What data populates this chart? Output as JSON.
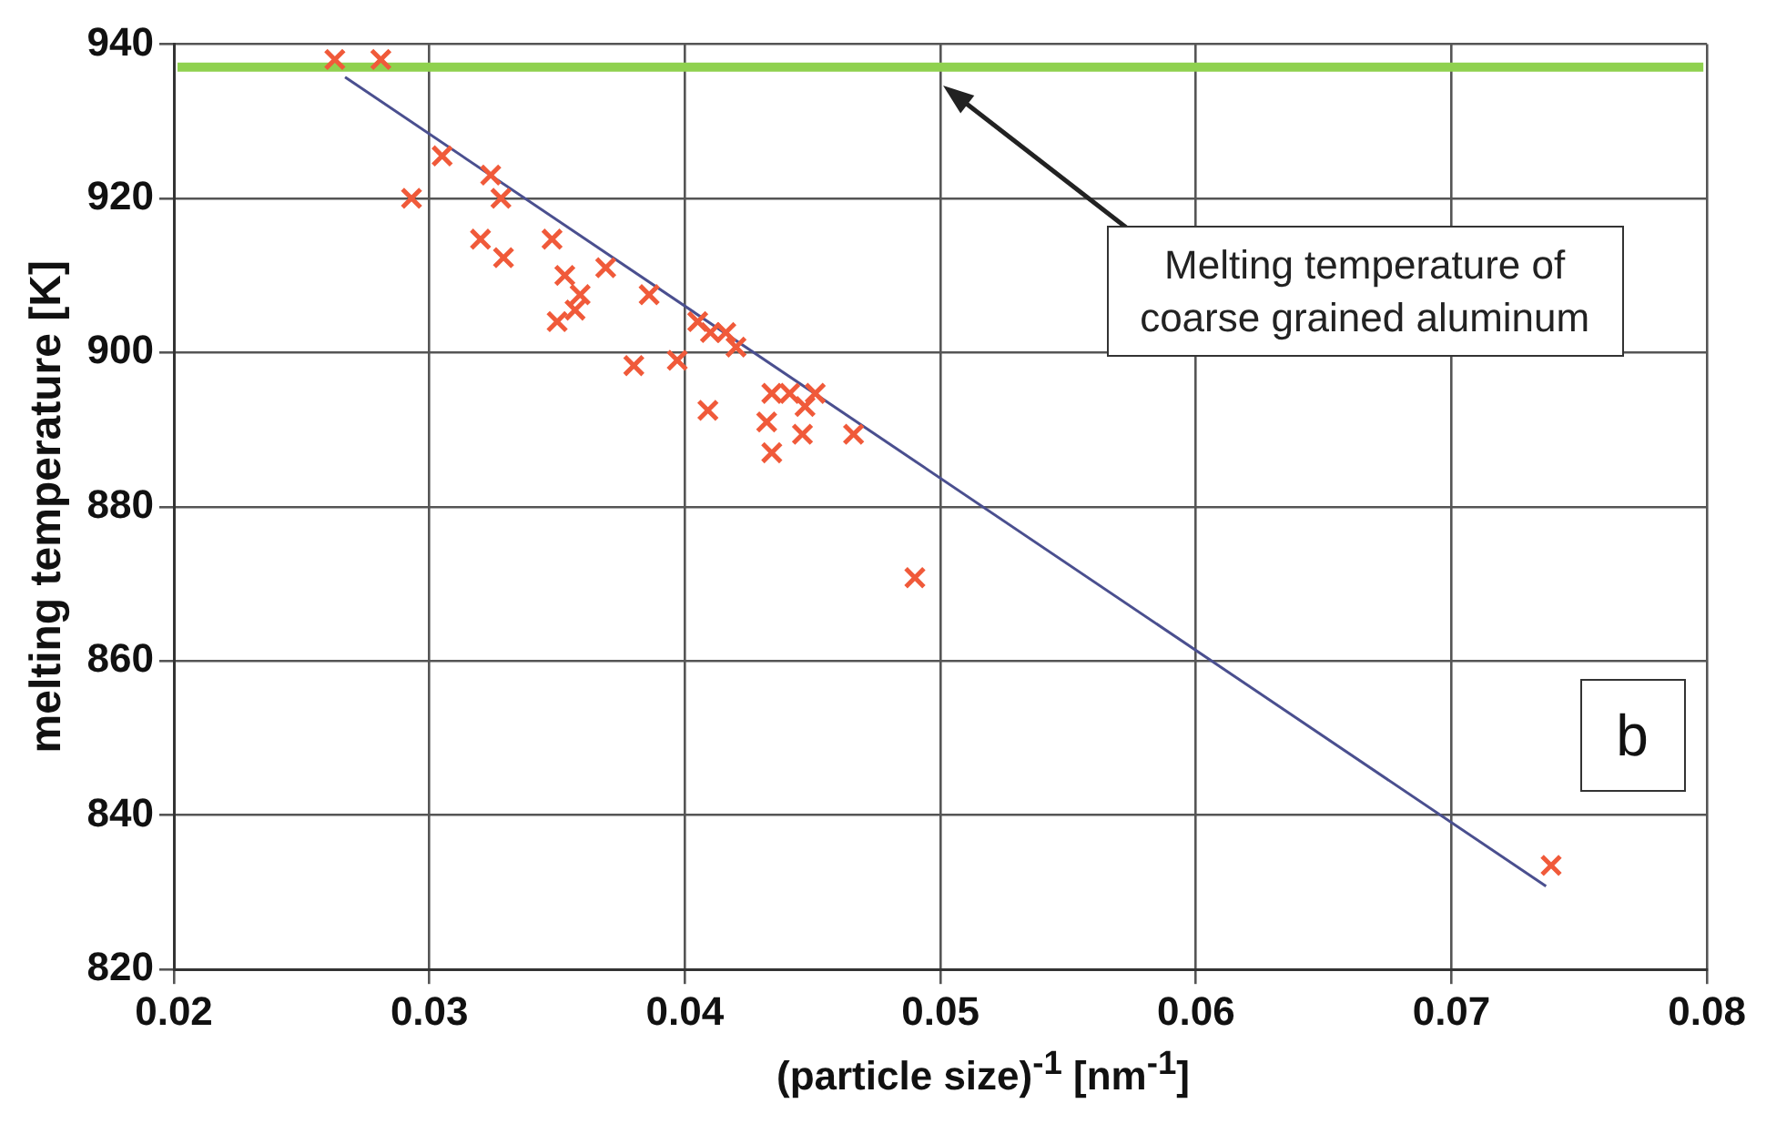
{
  "chart_data": {
    "type": "scatter",
    "xlabel": "(particle size)$^{-1}$ [nm$^{-1}$]",
    "ylabel": "melting temperature [K]",
    "xlim": [
      0.02,
      0.08
    ],
    "xticks": [
      0.02,
      0.03,
      0.04,
      0.05,
      0.06,
      0.07,
      0.08
    ],
    "ylim": [
      820,
      940
    ],
    "yticks": [
      820,
      840,
      860,
      880,
      900,
      920,
      940
    ],
    "grid": true,
    "marker": "cross",
    "legend": false,
    "series": [
      {
        "color": "#f05a3a",
        "x": [
          0.0263,
          0.0281,
          0.0305,
          0.0293,
          0.0324,
          0.0328,
          0.032,
          0.0329,
          0.0348,
          0.0353,
          0.035,
          0.0359,
          0.0357,
          0.0369,
          0.0386,
          0.038,
          0.0397,
          0.0409,
          0.041,
          0.0416,
          0.042,
          0.0405,
          0.0434,
          0.0441,
          0.0447,
          0.0451,
          0.0432,
          0.0434,
          0.0446,
          0.0466,
          0.049,
          0.0739
        ],
        "values": [
          938,
          938,
          925.5,
          920,
          923,
          920,
          914.7,
          912.3,
          914.7,
          910,
          904,
          907.5,
          905.5,
          911,
          907.5,
          898.3,
          899,
          892.5,
          902.6,
          902.6,
          900.7,
          904,
          894.7,
          894.7,
          893,
          894.7,
          891,
          887,
          889.4,
          889.4,
          870.8,
          833.5
        ]
      },
      {
        "type": "line",
        "color": "#4a4f8f",
        "marker": "none",
        "x": [
          0.0267,
          0.0737
        ],
        "values": [
          935.7,
          830.8
        ]
      }
    ],
    "ref_lines": [
      {
        "axis": "y",
        "value": 937,
        "color": "#8fd14f"
      }
    ],
    "annotations": [
      "Melting temperature of coarse grained aluminum",
      "b"
    ]
  }
}
